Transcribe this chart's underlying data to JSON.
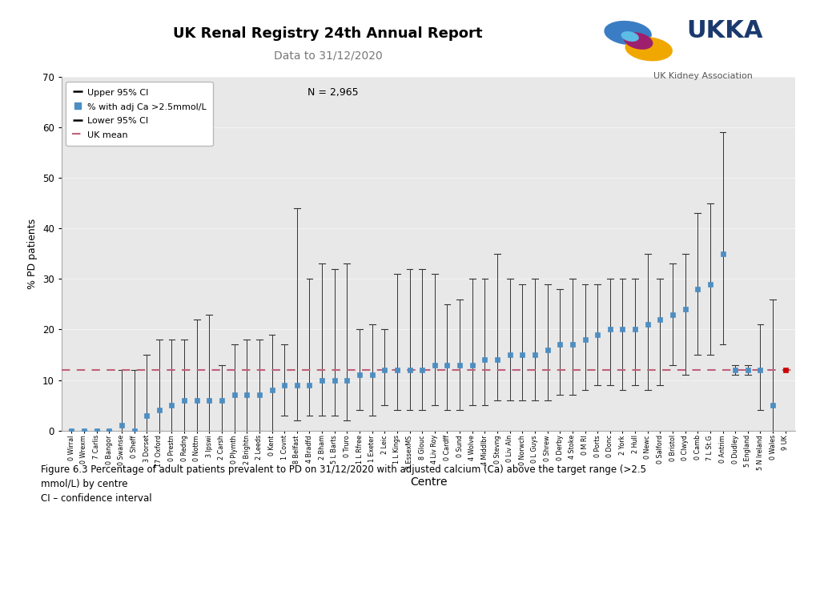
{
  "title": "UK Renal Registry 24th Annual Report",
  "subtitle": "Data to 31/12/2020",
  "n_label": "N = 2,965",
  "ylabel": "% PD patients",
  "xlabel": "Centre",
  "uk_mean": 12.0,
  "ylim": [
    0,
    70
  ],
  "yticks": [
    0,
    10,
    20,
    30,
    40,
    50,
    60,
    70
  ],
  "figure_caption": "Figure 6.3 Percentage of adult patients prevalent to PD on 31/12/2020 with adjusted calcium (Ca) above the target range (>2.5\nmmol/L) by centre\nCI – confidence interval",
  "centres": [
    "0 Wirral",
    "0 Wrexm",
    "7 Carlis",
    "0 Bangor",
    "0 Swanse",
    "0 Sheff",
    "3 Dorset",
    "17 Oxford",
    "0 Prestn",
    "0 Redng",
    "0 Nottm",
    "3 Ipswi",
    "2 Carsh",
    "0 Plymth",
    "2 Brightn",
    "2 Leeds",
    "0 Kent",
    "1 Covnt",
    "8 Belfast",
    "4 Bradfd",
    "2 Bham",
    "5 L Barts",
    "0 Truro",
    "1 L Rfree",
    "1 Exeter",
    "2 Leic",
    "1 L Kings",
    "3 EssexMS",
    "8 Glouc",
    "4 Liv Roy",
    "0 Cardff",
    "0 Sund",
    "4 Wolve",
    "4 Middlbr",
    "0 Stevng",
    "0 Liv Aln",
    "0 Norwch",
    "0 L Guys",
    "0 Shrew",
    "0 Derby",
    "4 Stoke",
    "0 M RI",
    "0 Ports",
    "0 Donc",
    "2 York",
    "2 Hull",
    "0 Newc",
    "0 Salford",
    "0 Bristol",
    "0 Clwyd",
    "0 Camb",
    "7 L St.G",
    "0 Antrim",
    "0 Dudley",
    "5 England",
    "5 N Ireland",
    "0 Wales",
    "9 UK"
  ],
  "percent": [
    0,
    0,
    0,
    0,
    1,
    0,
    3,
    4,
    5,
    6,
    6,
    6,
    6,
    7,
    7,
    7,
    8,
    9,
    9,
    9,
    10,
    10,
    10,
    11,
    11,
    12,
    12,
    12,
    12,
    13,
    13,
    13,
    13,
    14,
    14,
    15,
    15,
    15,
    16,
    17,
    17,
    18,
    19,
    20,
    20,
    20,
    21,
    22,
    23,
    24,
    28,
    29,
    35,
    12,
    12,
    12,
    5,
    12
  ],
  "upper_ci": [
    0,
    0,
    0,
    0,
    12,
    12,
    15,
    18,
    18,
    18,
    22,
    23,
    13,
    17,
    18,
    18,
    19,
    17,
    44,
    30,
    33,
    32,
    33,
    20,
    21,
    20,
    31,
    32,
    32,
    31,
    25,
    26,
    30,
    30,
    35,
    30,
    29,
    30,
    29,
    28,
    30,
    29,
    29,
    30,
    30,
    30,
    35,
    30,
    33,
    35,
    43,
    45,
    59,
    13,
    13,
    21,
    26,
    12
  ],
  "lower_ci": [
    0,
    0,
    0,
    0,
    0,
    0,
    0,
    0,
    0,
    0,
    0,
    0,
    0,
    0,
    0,
    0,
    0,
    3,
    2,
    3,
    3,
    3,
    2,
    4,
    3,
    5,
    4,
    4,
    4,
    5,
    4,
    4,
    5,
    5,
    6,
    6,
    6,
    6,
    6,
    7,
    7,
    8,
    9,
    9,
    8,
    9,
    8,
    9,
    13,
    11,
    15,
    15,
    17,
    11,
    11,
    4,
    0,
    12
  ],
  "uk_idx": 57,
  "marker_color_normal": "#4d8ec2",
  "marker_color_uk": "#cc0000",
  "line_color": "#333333",
  "uk_mean_color": "#c0607a",
  "plot_bg_color": "#e8e8e8",
  "logo_colors": {
    "blue": "#3b7bbf",
    "yellow": "#f0a500",
    "magenta": "#a0246e",
    "blue2": "#4db8e8"
  },
  "ukka_text_color": "#1a3a6e",
  "ukka_sub_color": "#4d4d4d"
}
